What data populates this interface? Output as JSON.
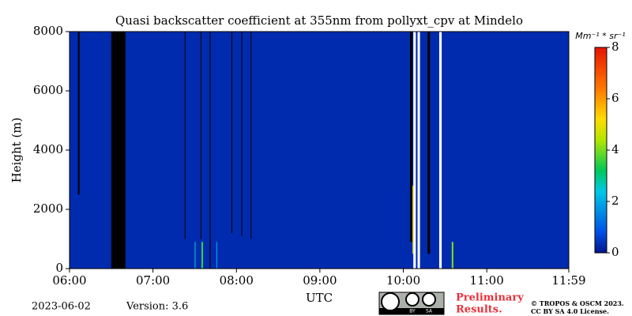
{
  "chart_data": {
    "type": "heatmap",
    "title": "Quasi backscatter coefficient at 355nm from pollyxt_cpv at Mindelo",
    "x_label": "UTC",
    "y_label": "Height (m)",
    "xlim": [
      6,
      11.983
    ],
    "xticks": [
      {
        "value": 6,
        "label": "06:00"
      },
      {
        "value": 7,
        "label": "07:00"
      },
      {
        "value": 8,
        "label": "08:00"
      },
      {
        "value": 9,
        "label": "09:00"
      },
      {
        "value": 10,
        "label": "10:00"
      },
      {
        "value": 11,
        "label": "11:00"
      },
      {
        "value": 11.983,
        "label": "11:59"
      }
    ],
    "ylim": [
      0,
      8000
    ],
    "yticks": [
      0,
      2000,
      4000,
      6000,
      8000
    ],
    "colorbar_label": "Mm⁻¹ * sr⁻¹",
    "zlim": [
      0,
      8
    ],
    "zticks": [
      0,
      2,
      4,
      6,
      8
    ],
    "field_value": 0.3,
    "masked": [
      {
        "x": [
          6.5,
          6.67
        ],
        "y": [
          0,
          8000
        ]
      },
      {
        "x": [
          6.1,
          6.12
        ],
        "y": [
          2500,
          8000
        ]
      },
      {
        "x": [
          7.38,
          7.39
        ],
        "y": [
          1000,
          8000
        ]
      },
      {
        "x": [
          7.57,
          7.58
        ],
        "y": [
          1000,
          8000
        ]
      },
      {
        "x": [
          7.68,
          7.69
        ],
        "y": [
          0,
          8000
        ]
      },
      {
        "x": [
          7.94,
          7.95
        ],
        "y": [
          1200,
          8000
        ]
      },
      {
        "x": [
          8.06,
          8.07
        ],
        "y": [
          1100,
          8000
        ]
      },
      {
        "x": [
          8.17,
          8.18
        ],
        "y": [
          1000,
          8000
        ]
      },
      {
        "x": [
          10.08,
          10.11
        ],
        "y": [
          900,
          8000
        ]
      },
      {
        "x": [
          10.29,
          10.32
        ],
        "y": [
          500,
          8000
        ]
      }
    ],
    "no_data": [
      {
        "x": [
          10.12,
          10.15
        ],
        "y": [
          0,
          8000
        ]
      },
      {
        "x": [
          10.17,
          10.2
        ],
        "y": [
          0,
          8000
        ]
      },
      {
        "x": [
          10.43,
          10.46
        ],
        "y": [
          0,
          8000
        ]
      }
    ],
    "peaks": [
      {
        "x": [
          7.5,
          7.51
        ],
        "y": [
          0,
          900
        ],
        "value": 2.5
      },
      {
        "x": [
          7.58,
          7.6
        ],
        "y": [
          0,
          900
        ],
        "value": 3.5
      },
      {
        "x": [
          7.76,
          7.77
        ],
        "y": [
          0,
          900
        ],
        "value": 2
      },
      {
        "x": [
          10.11,
          10.12
        ],
        "y": [
          500,
          2800
        ],
        "value": 5
      },
      {
        "x": [
          10.58,
          10.6
        ],
        "y": [
          0,
          900
        ],
        "value": 4
      }
    ],
    "footer": {
      "date": "2023-06-02",
      "version": "Version: 3.6",
      "status": [
        "Preliminary",
        "Results."
      ],
      "license": [
        "© TROPOS & OSCM 2023.",
        "CC BY SA 4.0 License."
      ],
      "badge": [
        "BY",
        "SA"
      ]
    }
  }
}
